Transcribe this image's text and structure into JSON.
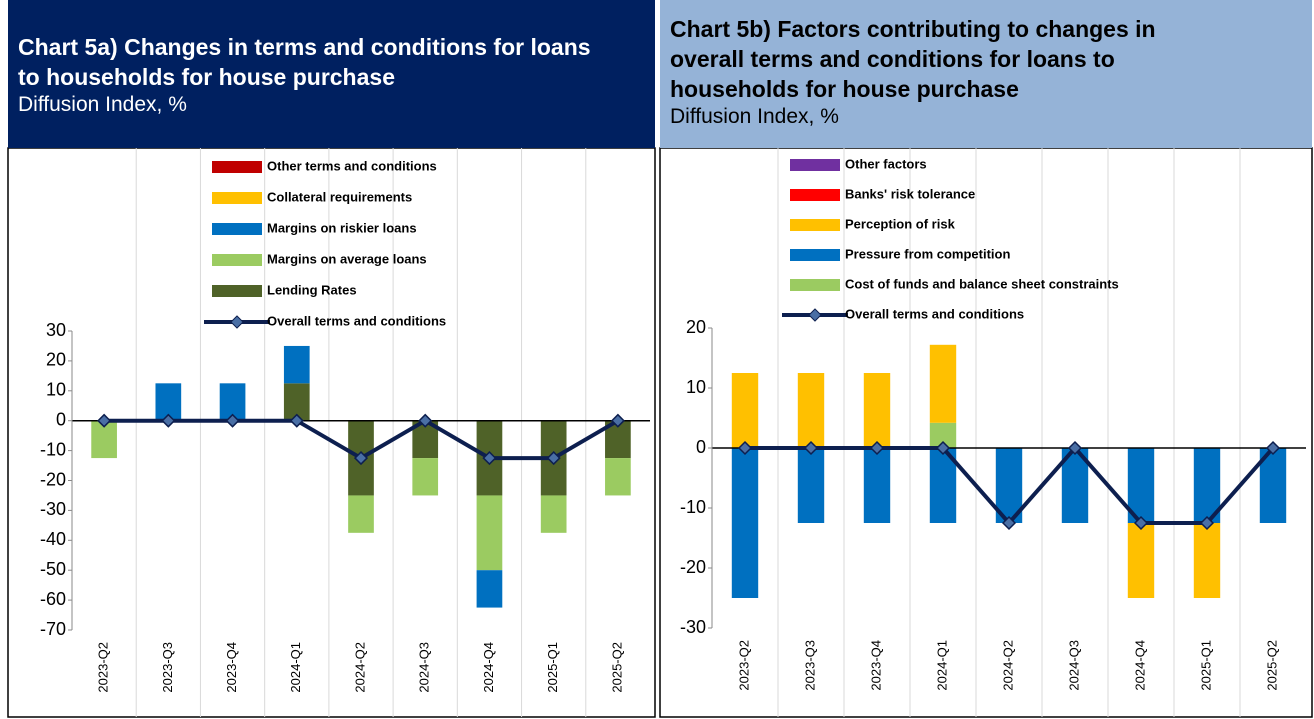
{
  "chart_data": [
    {
      "type": "bar",
      "stacked": true,
      "title": "Chart 5a) Changes in terms and conditions for loans to households for house purchase",
      "subtitle": "Diffusion Index, %",
      "categories": [
        "2023-Q2",
        "2023-Q3",
        "2023-Q4",
        "2024-Q1",
        "2024-Q2",
        "2024-Q3",
        "2024-Q4",
        "2025-Q1",
        "2025-Q2"
      ],
      "series": [
        {
          "name": "Lending Rates",
          "color": "#4f6228",
          "values": [
            0,
            0,
            0,
            12.5,
            -25,
            -12.5,
            -25,
            -25,
            -12.5
          ]
        },
        {
          "name": "Margins on average loans",
          "color": "#9bcb61",
          "values": [
            -12.5,
            0,
            0,
            0,
            -12.5,
            -12.5,
            -25,
            -12.5,
            -12.5
          ]
        },
        {
          "name": "Margins on riskier loans",
          "color": "#0070c0",
          "values": [
            0,
            12.5,
            12.5,
            12.5,
            0,
            0,
            -12.5,
            0,
            0
          ]
        },
        {
          "name": "Collateral requirements",
          "color": "#ffc000",
          "values": [
            0,
            0,
            0,
            0,
            0,
            0,
            0,
            0,
            0
          ]
        },
        {
          "name": "Other terms and conditions",
          "color": "#c00000",
          "values": [
            0,
            0,
            0,
            0,
            0,
            0,
            0,
            0,
            0
          ]
        },
        {
          "name": "Overall terms and conditions",
          "type": "line",
          "color": "#0d1f4f",
          "values": [
            0,
            0,
            0,
            0,
            -12.5,
            0,
            -12.5,
            -12.5,
            0
          ]
        }
      ],
      "ylim": [
        -70,
        30
      ],
      "yticks": [
        30,
        20,
        10,
        0,
        -10,
        -20,
        -30,
        -40,
        -50,
        -60,
        -70
      ]
    },
    {
      "type": "bar",
      "stacked": true,
      "title": "Chart 5b) Factors contributing to changes in overall terms and conditions for loans to households for house purchase",
      "subtitle": "Diffusion Index, %",
      "categories": [
        "2023-Q2",
        "2023-Q3",
        "2023-Q4",
        "2024-Q1",
        "2024-Q2",
        "2024-Q3",
        "2024-Q4",
        "2025-Q1",
        "2025-Q2"
      ],
      "series": [
        {
          "name": "Cost of funds and balance sheet constraints",
          "color": "#9bcb61",
          "values": [
            0,
            0,
            0,
            4.2,
            0,
            0,
            0,
            0,
            0
          ]
        },
        {
          "name": "Pressure from competition",
          "color": "#0070c0",
          "values": [
            -25,
            -12.5,
            -12.5,
            -12.5,
            -12.5,
            -12.5,
            -12.5,
            -12.5,
            -12.5
          ]
        },
        {
          "name": "Perception of risk",
          "color": "#ffc000",
          "values": [
            12.5,
            12.5,
            12.5,
            13,
            0,
            0,
            -12.5,
            -12.5,
            0
          ]
        },
        {
          "name": "Banks' risk tolerance",
          "color": "#ff0000",
          "values": [
            0,
            0,
            0,
            0,
            0,
            0,
            0,
            0,
            0
          ]
        },
        {
          "name": "Other factors",
          "color": "#7030a0",
          "values": [
            0,
            0,
            0,
            0,
            0,
            0,
            0,
            0,
            0
          ]
        },
        {
          "name": "Overall terms and conditions",
          "type": "line",
          "color": "#0d1f4f",
          "values": [
            0,
            0,
            0,
            0,
            -12.5,
            0,
            -12.5,
            -12.5,
            0
          ]
        }
      ],
      "ylim": [
        -30,
        20
      ],
      "yticks": [
        20,
        10,
        0,
        -10,
        -20,
        -30
      ]
    }
  ]
}
